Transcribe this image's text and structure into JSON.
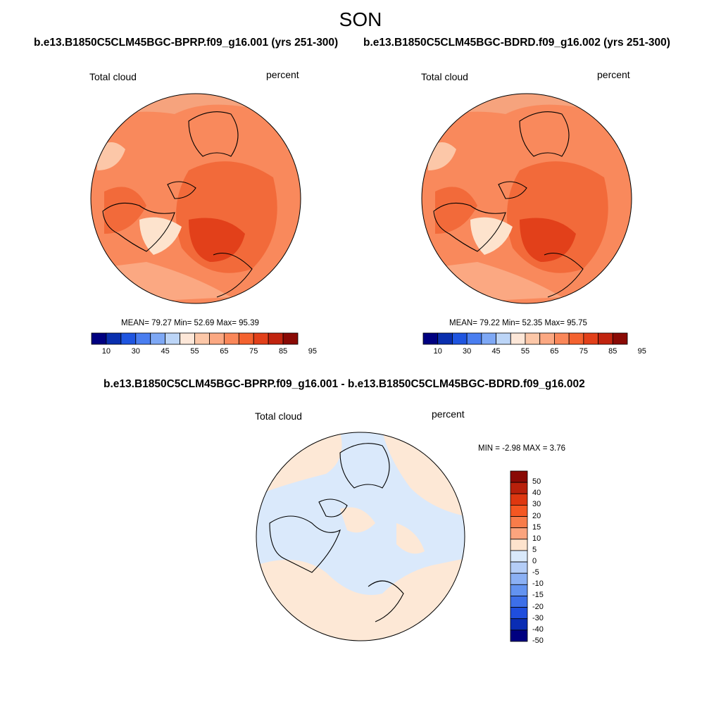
{
  "season": "SON",
  "panels": [
    {
      "title": "b.e13.B1850C5CLM45BGC-BPRP.f09_g16.001 (yrs 251-300)",
      "left_label": "Total cloud",
      "right_label": "percent",
      "stats": "MEAN=  79.27  Min=  52.69  Max=  95.39",
      "mean": 79.27,
      "min": 52.69,
      "max": 95.39
    },
    {
      "title": "b.e13.B1850C5CLM45BGC-BDRD.f09_g16.002 (yrs 251-300)",
      "left_label": "Total cloud",
      "right_label": "percent",
      "stats": "MEAN=  79.22  Min=  52.35  Max=  95.75",
      "mean": 79.22,
      "min": 52.35,
      "max": 95.75
    }
  ],
  "diff_panel": {
    "title": "b.e13.B1850C5CLM45BGC-BPRP.f09_g16.001 - b.e13.B1850C5CLM45BGC-BDRD.f09_g16.002",
    "left_label": "Total cloud",
    "right_label": "percent",
    "stats": "MIN =  -2.98 MAX =   3.76",
    "min": -2.98,
    "max": 3.76
  },
  "abs_colorbar": {
    "colors": [
      "#000080",
      "#0a2fae",
      "#1f55e0",
      "#4a7ef0",
      "#7ea8f5",
      "#bcd5f7",
      "#fde7d8",
      "#fcc7a8",
      "#fba882",
      "#fa8759",
      "#f4622f",
      "#e2401a",
      "#c1240f",
      "#8a0a05"
    ],
    "labels": [
      "10",
      "30",
      "45",
      "55",
      "65",
      "75",
      "85",
      "95"
    ]
  },
  "diff_colorbar": {
    "colors": [
      "#8a0a05",
      "#b8200b",
      "#de3710",
      "#f45722",
      "#f87c4a",
      "#fba47e",
      "#fde3cd",
      "#d9e9fb",
      "#b4cdf7",
      "#8bb0f4",
      "#6393f0",
      "#3d6fe8",
      "#1f4edd",
      "#0a2db4",
      "#000080"
    ],
    "labels": [
      "50",
      "40",
      "30",
      "20",
      "15",
      "10",
      "5",
      "0",
      "-5",
      "-10",
      "-15",
      "-20",
      "-30",
      "-40",
      "-50"
    ]
  }
}
